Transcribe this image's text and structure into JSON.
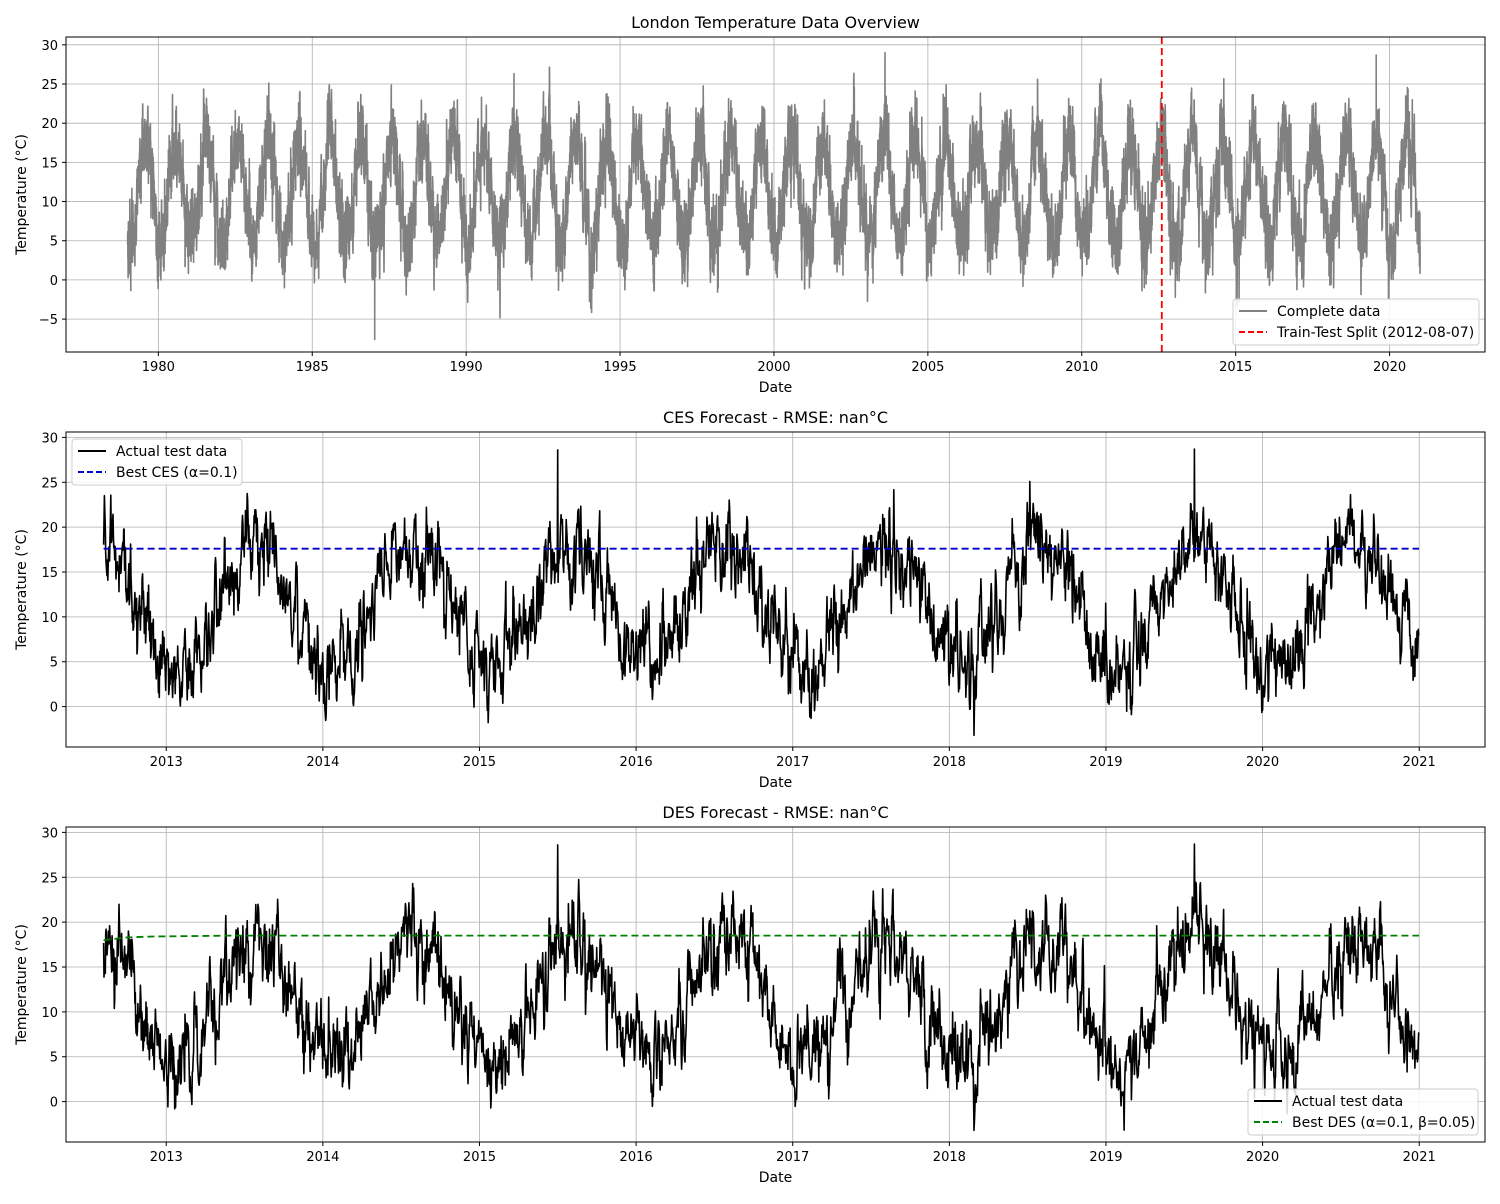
{
  "chart_data": [
    {
      "type": "line",
      "title": "London Temperature Data Overview",
      "xlabel": "Date",
      "ylabel": "Temperature (°C)",
      "xlim": [
        1977.0,
        2023.1
      ],
      "ylim": [
        -9.2,
        31.0
      ],
      "x_ticks": [
        1980,
        1985,
        1990,
        1995,
        2000,
        2005,
        2010,
        2015,
        2020
      ],
      "x_tick_labels": [
        "1980",
        "1985",
        "1990",
        "1995",
        "2000",
        "2005",
        "2010",
        "2015",
        "2020"
      ],
      "y_ticks": [
        -5,
        0,
        5,
        10,
        15,
        20,
        25,
        30
      ],
      "y_tick_labels": [
        "−5",
        "0",
        "5",
        "10",
        "15",
        "20",
        "25",
        "30"
      ],
      "grid": true,
      "legend_position": "bottom-right",
      "legend": [
        {
          "label": "Complete data",
          "color": "#808080",
          "style": "solid"
        },
        {
          "label": "Train-Test Split (2012-08-07)",
          "color": "#ff0000",
          "style": "dashed"
        }
      ],
      "series": [
        {
          "name": "Complete data",
          "color": "#808080",
          "style": "solid",
          "x_range": [
            "1979-01-01",
            "2020-12-31"
          ],
          "seasonal_model": {
            "mean": 11.3,
            "amplitude": 6.8,
            "peak_month": 7,
            "noise_sd": 2.6
          },
          "extremes": [
            {
              "date": "1987-01-12",
              "value": -7.6
            },
            {
              "date": "2003-08-10",
              "value": 29.0
            },
            {
              "date": "2019-07-25",
              "value": 28.7
            }
          ]
        }
      ],
      "vline": {
        "label": "Train-Test Split (2012-08-07)",
        "x": "2012-08-07",
        "color": "#ff0000",
        "style": "dashed"
      }
    },
    {
      "type": "line",
      "title": "CES Forecast - RMSE: nan°C",
      "xlabel": "Date",
      "ylabel": "Temperature (°C)",
      "xlim": [
        2012.36,
        2021.42
      ],
      "ylim": [
        -4.5,
        30.6
      ],
      "x_ticks": [
        2013,
        2014,
        2015,
        2016,
        2017,
        2018,
        2019,
        2020,
        2021
      ],
      "x_tick_labels": [
        "2013",
        "2014",
        "2015",
        "2016",
        "2017",
        "2018",
        "2019",
        "2020",
        "2021"
      ],
      "y_ticks": [
        0,
        5,
        10,
        15,
        20,
        25,
        30
      ],
      "y_tick_labels": [
        "0",
        "5",
        "10",
        "15",
        "20",
        "25",
        "30"
      ],
      "grid": true,
      "legend_position": "top-left",
      "legend": [
        {
          "label": "Actual test data",
          "color": "#000000",
          "style": "solid"
        },
        {
          "label": "Best CES (α=0.1)",
          "color": "#0000cc",
          "style": "dashed"
        }
      ],
      "series": [
        {
          "name": "Actual test data",
          "color": "#000000",
          "style": "solid",
          "x_range": [
            "2012-08-07",
            "2020-12-31"
          ],
          "seasonal_model": {
            "mean": 11.3,
            "amplitude": 6.8,
            "peak_month": 7,
            "noise_sd": 2.6
          },
          "extremes": [
            {
              "date": "2015-07-01",
              "value": 28.6
            },
            {
              "date": "2018-02-28",
              "value": -3.2
            },
            {
              "date": "2019-07-25",
              "value": 28.7
            }
          ]
        },
        {
          "name": "Best CES (α=0.1)",
          "color": "#0000cc",
          "style": "dashed",
          "x": [
            "2012-08-07",
            "2020-12-31"
          ],
          "values": [
            17.6,
            17.6
          ]
        }
      ]
    },
    {
      "type": "line",
      "title": "DES Forecast - RMSE: nan°C",
      "xlabel": "Date",
      "ylabel": "Temperature (°C)",
      "xlim": [
        2012.36,
        2021.42
      ],
      "ylim": [
        -4.5,
        30.6
      ],
      "x_ticks": [
        2013,
        2014,
        2015,
        2016,
        2017,
        2018,
        2019,
        2020,
        2021
      ],
      "x_tick_labels": [
        "2013",
        "2014",
        "2015",
        "2016",
        "2017",
        "2018",
        "2019",
        "2020",
        "2021"
      ],
      "y_ticks": [
        0,
        5,
        10,
        15,
        20,
        25,
        30
      ],
      "y_tick_labels": [
        "0",
        "5",
        "10",
        "15",
        "20",
        "25",
        "30"
      ],
      "grid": true,
      "legend_position": "bottom-right",
      "legend": [
        {
          "label": "Actual test data",
          "color": "#000000",
          "style": "solid"
        },
        {
          "label": "Best DES (α=0.1, β=0.05)",
          "color": "#008000",
          "style": "dashed"
        }
      ],
      "series": [
        {
          "name": "Actual test data",
          "color": "#000000",
          "style": "solid",
          "x_range": [
            "2012-08-07",
            "2020-12-31"
          ],
          "seasonal_model": {
            "mean": 11.3,
            "amplitude": 6.8,
            "peak_month": 7,
            "noise_sd": 2.6
          },
          "extremes": [
            {
              "date": "2015-07-01",
              "value": 28.6
            },
            {
              "date": "2018-02-28",
              "value": -3.2
            },
            {
              "date": "2019-07-25",
              "value": 28.7
            }
          ]
        },
        {
          "name": "Best DES (α=0.1, β=0.05)",
          "color": "#008000",
          "style": "dashed",
          "x": [
            "2012-08-07",
            "2012-10-01",
            "2012-12-01",
            "2013-06-01",
            "2020-12-31"
          ],
          "values": [
            18.0,
            18.3,
            18.4,
            18.5,
            18.5
          ]
        }
      ]
    }
  ]
}
